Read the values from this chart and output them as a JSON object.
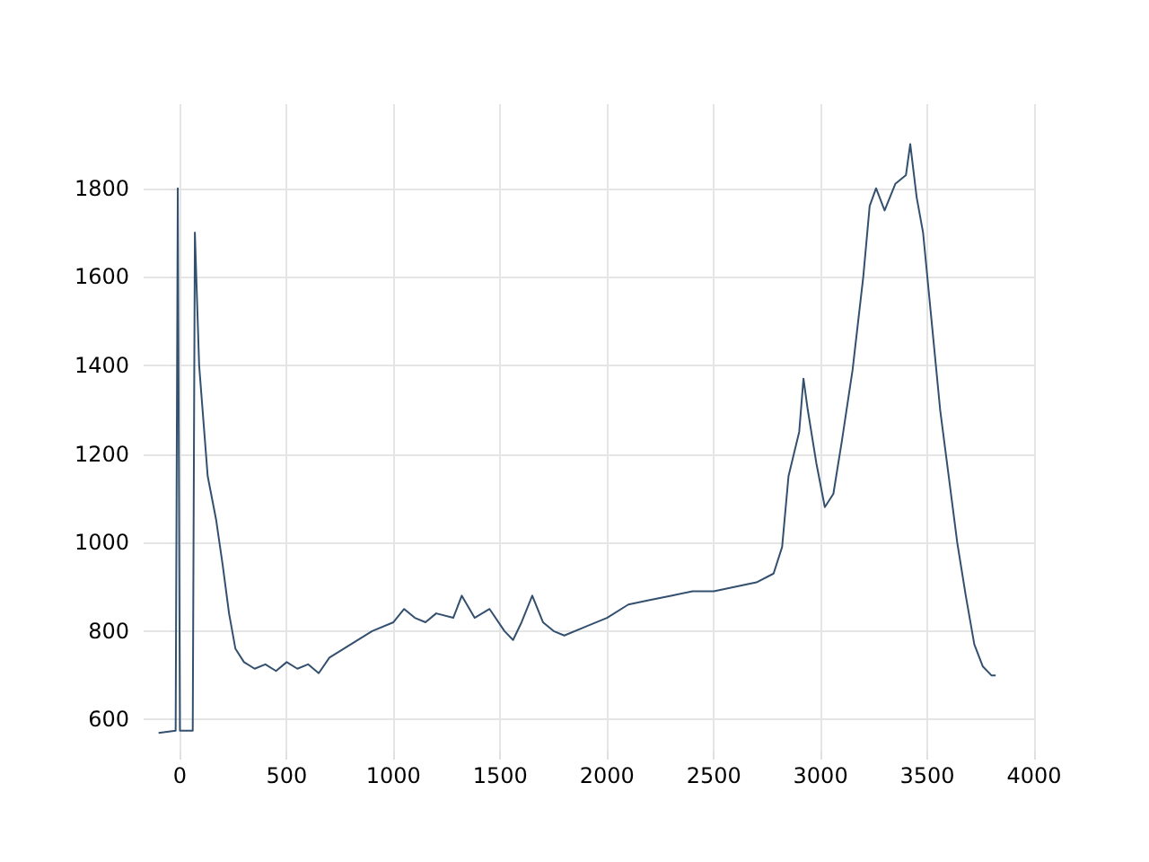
{
  "chart_data": {
    "type": "line",
    "color": "#34506f",
    "grid": true,
    "xlim": [
      -170,
      4000
    ],
    "xticks": [
      0,
      500,
      1000,
      1500,
      2000,
      2500,
      3000,
      3500,
      4000
    ],
    "ylim": [
      530,
      1990
    ],
    "yticks": [
      600,
      800,
      1000,
      1200,
      1400,
      1600,
      1800
    ],
    "x": [
      -100,
      -20,
      -10,
      0,
      60,
      70,
      90,
      130,
      170,
      200,
      230,
      260,
      300,
      350,
      400,
      450,
      500,
      550,
      600,
      650,
      700,
      800,
      900,
      1000,
      1050,
      1100,
      1150,
      1200,
      1280,
      1320,
      1380,
      1450,
      1520,
      1560,
      1600,
      1650,
      1700,
      1750,
      1800,
      1900,
      2000,
      2100,
      2200,
      2300,
      2400,
      2500,
      2600,
      2700,
      2780,
      2820,
      2850,
      2900,
      2920,
      2940,
      2980,
      3020,
      3060,
      3100,
      3150,
      3200,
      3230,
      3260,
      3300,
      3350,
      3400,
      3420,
      3450,
      3480,
      3520,
      3560,
      3600,
      3640,
      3680,
      3720,
      3760,
      3800,
      3820
    ],
    "values": [
      570,
      575,
      1800,
      575,
      575,
      1700,
      1400,
      1150,
      1050,
      950,
      840,
      760,
      730,
      715,
      725,
      710,
      730,
      715,
      725,
      705,
      740,
      770,
      800,
      820,
      850,
      830,
      820,
      840,
      830,
      880,
      830,
      850,
      800,
      780,
      820,
      880,
      820,
      800,
      790,
      810,
      830,
      860,
      870,
      880,
      890,
      890,
      900,
      910,
      930,
      990,
      1150,
      1250,
      1370,
      1300,
      1180,
      1080,
      1110,
      1230,
      1390,
      1600,
      1760,
      1800,
      1750,
      1810,
      1830,
      1900,
      1780,
      1700,
      1500,
      1300,
      1150,
      1000,
      880,
      770,
      720,
      700,
      700
    ]
  }
}
